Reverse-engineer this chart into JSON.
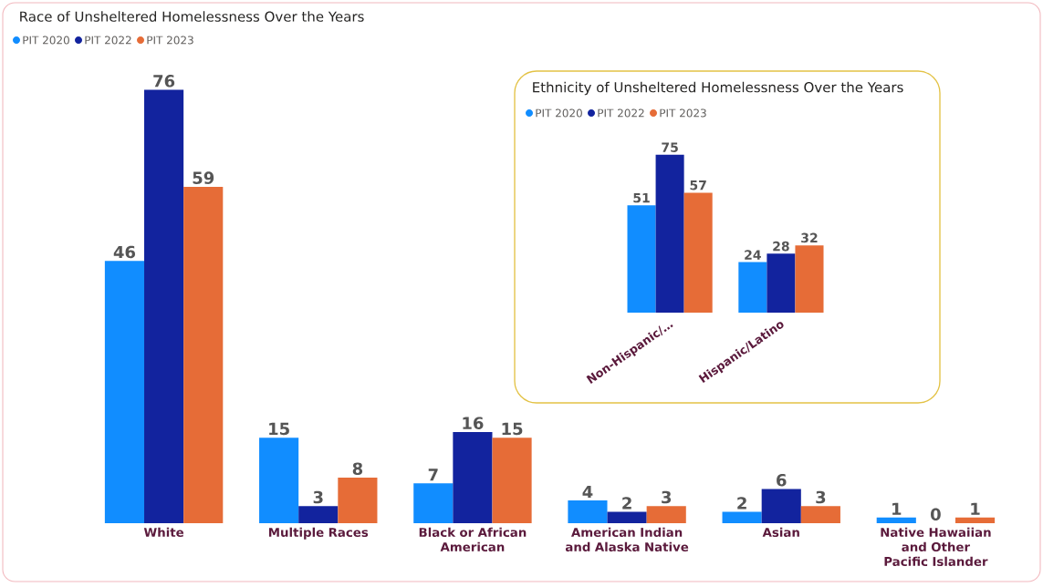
{
  "chart_data": [
    {
      "type": "bar",
      "title": "Race of Unsheltered Homelessness Over the Years",
      "categories": [
        "White",
        "Multiple Races",
        "Black or African American",
        "American Indian and Alaska Native",
        "Asian",
        "Native Hawaiian and Other Pacific Islander"
      ],
      "series": [
        {
          "name": "PIT 2020",
          "color": "#118dff",
          "values": [
            46,
            15,
            7,
            4,
            2,
            1
          ]
        },
        {
          "name": "PIT 2022",
          "color": "#12239e",
          "values": [
            76,
            3,
            16,
            2,
            6,
            0
          ]
        },
        {
          "name": "PIT 2023",
          "color": "#e66c37",
          "values": [
            59,
            8,
            15,
            3,
            3,
            1
          ]
        }
      ],
      "data_labels": true,
      "legend": "top left",
      "tick_labels": "x"
    },
    {
      "type": "bar",
      "title": "Ethnicity of Unsheltered Homelessness Over the Years",
      "categories": [
        "Non-Hispanic/…",
        "Hispanic/Latino"
      ],
      "series": [
        {
          "name": "PIT 2020",
          "color": "#118dff",
          "values": [
            51,
            24
          ]
        },
        {
          "name": "PIT 2022",
          "color": "#12239e",
          "values": [
            75,
            28
          ]
        },
        {
          "name": "PIT 2023",
          "color": "#e66c37",
          "values": [
            57,
            32
          ]
        }
      ],
      "data_labels": true,
      "legend": "top left",
      "tick_labels": "x"
    }
  ]
}
